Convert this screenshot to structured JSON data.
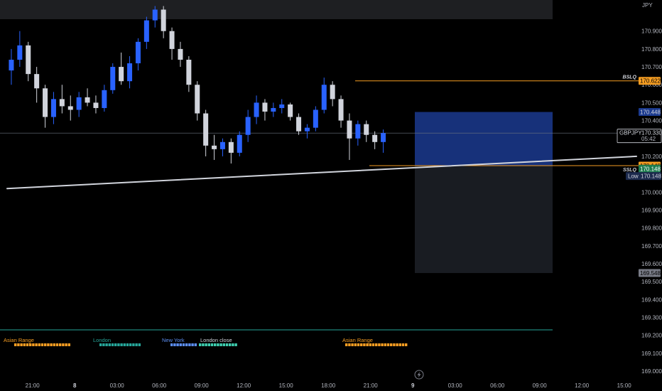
{
  "chart_data": {
    "type": "candlestick",
    "symbol": "GBPJPY",
    "countdown": "05:42",
    "currency": "JPY",
    "y_axis": {
      "min": 169.0,
      "max": 171.03,
      "ticks": [
        {
          "label": "170.900",
          "value": 170.9
        },
        {
          "label": "170.800",
          "value": 170.8
        },
        {
          "label": "170.700",
          "value": 170.7
        },
        {
          "label": "170.600",
          "value": 170.6
        },
        {
          "label": "170.500",
          "value": 170.5
        },
        {
          "label": "170.400",
          "value": 170.4
        },
        {
          "label": "170.200",
          "value": 170.2
        },
        {
          "label": "170.000",
          "value": 170.0
        },
        {
          "label": "169.900",
          "value": 169.9
        },
        {
          "label": "169.800",
          "value": 169.8
        },
        {
          "label": "169.700",
          "value": 169.7
        },
        {
          "label": "169.600",
          "value": 169.6
        },
        {
          "label": "169.500",
          "value": 169.5
        },
        {
          "label": "169.400",
          "value": 169.4
        },
        {
          "label": "169.300",
          "value": 169.3
        },
        {
          "label": "169.200",
          "value": 169.2
        },
        {
          "label": "169.100",
          "value": 169.1
        },
        {
          "label": "169.000",
          "value": 169.0
        }
      ]
    },
    "x_axis": {
      "ticks": [
        {
          "label": "21:00",
          "index": 3,
          "bold": false
        },
        {
          "label": "8",
          "index": 8,
          "bold": true
        },
        {
          "label": "03:00",
          "index": 13,
          "bold": false
        },
        {
          "label": "06:00",
          "index": 18,
          "bold": false
        },
        {
          "label": "09:00",
          "index": 23,
          "bold": false
        },
        {
          "label": "12:00",
          "index": 28,
          "bold": false
        },
        {
          "label": "15:00",
          "index": 33,
          "bold": false
        },
        {
          "label": "18:00",
          "index": 38,
          "bold": false
        },
        {
          "label": "21:00",
          "index": 43,
          "bold": false
        },
        {
          "label": "9",
          "index": 48,
          "bold": true
        },
        {
          "label": "03:00",
          "index": 53,
          "bold": false
        },
        {
          "label": "06:00",
          "index": 58,
          "bold": false
        },
        {
          "label": "09:00",
          "index": 63,
          "bold": false
        },
        {
          "label": "12:00",
          "index": 68,
          "bold": false
        },
        {
          "label": "15:00",
          "index": 73,
          "bold": false
        }
      ]
    },
    "candles": [
      [
        170.68,
        170.8,
        170.6,
        170.74
      ],
      [
        170.74,
        170.9,
        170.7,
        170.82
      ],
      [
        170.82,
        170.84,
        170.62,
        170.66
      ],
      [
        170.66,
        170.7,
        170.5,
        170.58
      ],
      [
        170.58,
        170.6,
        170.36,
        170.42
      ],
      [
        170.42,
        170.56,
        170.38,
        170.52
      ],
      [
        170.52,
        170.6,
        170.44,
        170.48
      ],
      [
        170.48,
        170.54,
        170.4,
        170.46
      ],
      [
        170.46,
        170.56,
        170.42,
        170.53
      ],
      [
        170.53,
        170.58,
        170.48,
        170.5
      ],
      [
        170.5,
        170.54,
        170.44,
        170.47
      ],
      [
        170.47,
        170.6,
        170.45,
        170.57
      ],
      [
        170.57,
        170.72,
        170.55,
        170.7
      ],
      [
        170.7,
        170.78,
        170.6,
        170.62
      ],
      [
        170.62,
        170.76,
        170.58,
        170.72
      ],
      [
        170.72,
        170.86,
        170.68,
        170.84
      ],
      [
        170.84,
        170.98,
        170.8,
        170.96
      ],
      [
        170.96,
        171.04,
        170.92,
        171.02
      ],
      [
        171.02,
        171.04,
        170.86,
        170.9
      ],
      [
        170.9,
        170.92,
        170.74,
        170.8
      ],
      [
        170.8,
        170.84,
        170.7,
        170.74
      ],
      [
        170.74,
        170.76,
        170.56,
        170.6
      ],
      [
        170.6,
        170.62,
        170.4,
        170.44
      ],
      [
        170.44,
        170.46,
        170.2,
        170.26
      ],
      [
        170.26,
        170.32,
        170.18,
        170.24
      ],
      [
        170.24,
        170.3,
        170.2,
        170.28
      ],
      [
        170.28,
        170.3,
        170.16,
        170.22
      ],
      [
        170.22,
        170.34,
        170.2,
        170.32
      ],
      [
        170.32,
        170.46,
        170.28,
        170.42
      ],
      [
        170.42,
        170.54,
        170.38,
        170.5
      ],
      [
        170.5,
        170.52,
        170.4,
        170.45
      ],
      [
        170.45,
        170.5,
        170.42,
        170.47
      ],
      [
        170.47,
        170.52,
        170.44,
        170.49
      ],
      [
        170.49,
        170.5,
        170.4,
        170.42
      ],
      [
        170.42,
        170.44,
        170.32,
        170.34
      ],
      [
        170.34,
        170.38,
        170.3,
        170.36
      ],
      [
        170.36,
        170.48,
        170.34,
        170.46
      ],
      [
        170.46,
        170.64,
        170.44,
        170.6
      ],
      [
        170.6,
        170.62,
        170.48,
        170.52
      ],
      [
        170.52,
        170.54,
        170.36,
        170.4
      ],
      [
        170.4,
        170.44,
        170.18,
        170.3
      ],
      [
        170.3,
        170.4,
        170.26,
        170.38
      ],
      [
        170.38,
        170.4,
        170.28,
        170.32
      ],
      [
        170.32,
        170.34,
        170.24,
        170.28
      ],
      [
        170.28,
        170.35,
        170.22,
        170.33
      ]
    ],
    "lines": [
      {
        "name": "BSLQ",
        "value": 170.622,
        "label": "170.622",
        "color": "#f59d22"
      },
      {
        "name": "SSLQ",
        "value": 170.148,
        "label": "170.148",
        "color": "#f59d22"
      }
    ],
    "trendline": {
      "start": [
        0,
        170.02
      ],
      "end": [
        73,
        170.2
      ]
    },
    "position_box": {
      "entry": 170.148,
      "target": 170.448,
      "stop": 169.548,
      "target_label": "170.448",
      "stop_label": "169.548"
    },
    "price_tags": {
      "current": "170.330",
      "current_value": 170.33,
      "green": "170.148",
      "green_value": 170.135,
      "low_title": "Low",
      "low": "170.148",
      "low_value": 170.09
    }
  },
  "sessions": [
    {
      "name": "Asian Range",
      "color": "#f59d22",
      "label_color": "#f59d22"
    },
    {
      "name": "London",
      "color": "#26a69a",
      "label_color": "#26a69a"
    },
    {
      "name": "New York",
      "color": "#5b8def",
      "label_color": "#5b8def"
    },
    {
      "name": "London close",
      "color": "#3ecfb0",
      "label_color": "#d1d4dc"
    },
    {
      "name": "Asian Range",
      "color": "#f59d22",
      "label_color": "#f59d22"
    }
  ],
  "colors": {
    "up": "#2962ff",
    "down": "#d1d4dc",
    "background": "#000000",
    "panel_line": "#26a69a",
    "blue_box": "#1b3a8f",
    "gray_box": "#2a2e39"
  },
  "icons": {
    "replay": "lightning-icon"
  }
}
